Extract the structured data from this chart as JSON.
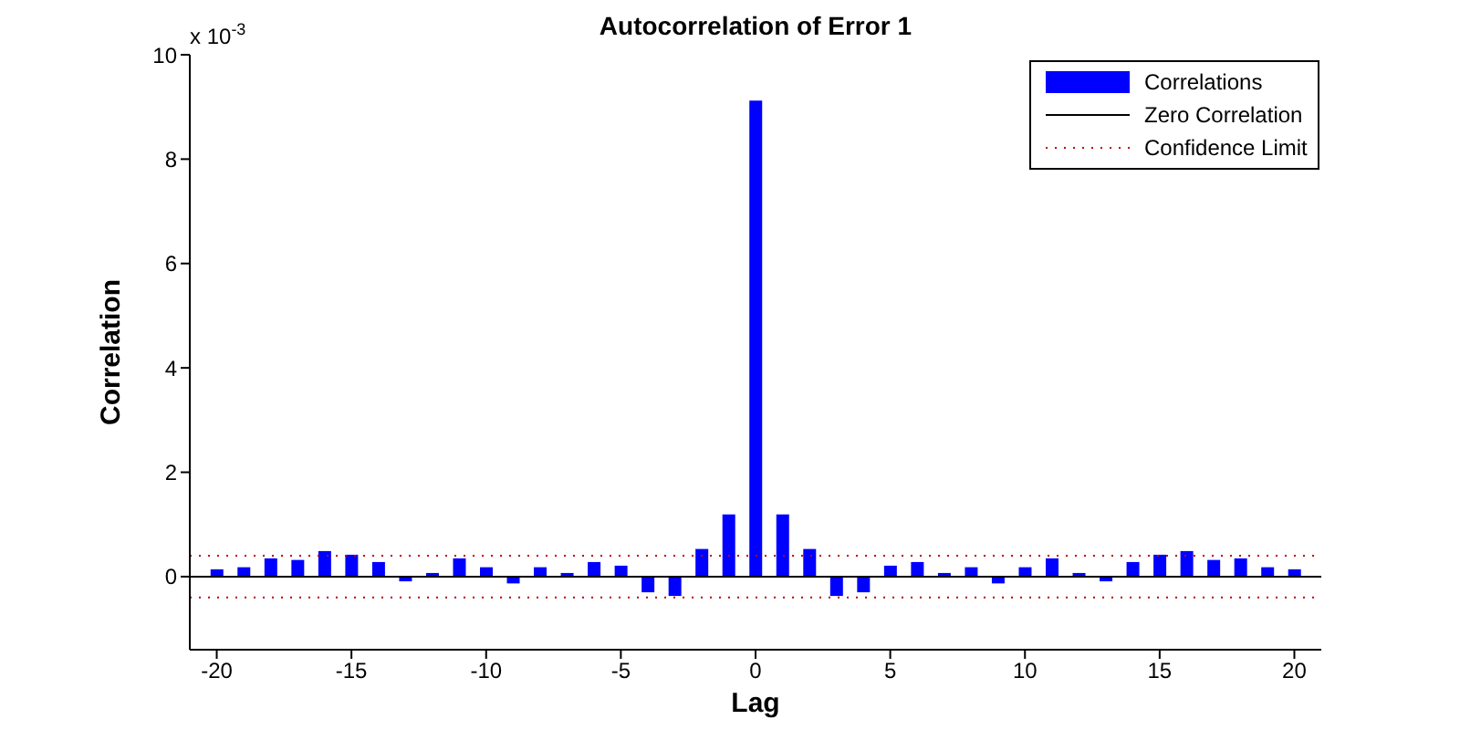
{
  "chart_data": {
    "type": "bar",
    "title": "Autocorrelation of Error 1",
    "xlabel": "Lag",
    "ylabel": "Correlation",
    "annotations": [
      "x 10$^{-3}$"
    ],
    "x": [
      -20,
      -19,
      -18,
      -17,
      -16,
      -15,
      -14,
      -13,
      -12,
      -11,
      -10,
      -9,
      -8,
      -7,
      -6,
      -5,
      -4,
      -3,
      -2,
      -1,
      0,
      1,
      2,
      3,
      4,
      5,
      6,
      7,
      8,
      9,
      10,
      11,
      12,
      13,
      14,
      15,
      16,
      17,
      18,
      19,
      20
    ],
    "series": [
      {
        "name": "Correlations",
        "color": "#0000ff",
        "values": [
          0.14,
          0.18,
          0.35,
          0.32,
          0.49,
          0.42,
          0.28,
          -0.09,
          0.07,
          0.35,
          0.18,
          -0.13,
          0.18,
          0.07,
          0.28,
          0.21,
          -0.3,
          -0.37,
          0.53,
          1.19,
          9.12,
          1.19,
          0.53,
          -0.37,
          -0.3,
          0.21,
          0.28,
          0.07,
          0.18,
          -0.13,
          0.18,
          0.35,
          0.07,
          -0.09,
          0.28,
          0.42,
          0.49,
          0.32,
          0.35,
          0.18,
          0.14
        ]
      }
    ],
    "ref_lines": [
      {
        "axis": "y",
        "value": 0,
        "label": "Zero Correlation",
        "color": "#000000",
        "line_style": "solid"
      },
      {
        "axis": "y",
        "value": 0.4,
        "label": "Confidence Limit",
        "color": "#c00000",
        "line_style": "dotted"
      },
      {
        "axis": "y",
        "value": -0.4,
        "color": "#c00000",
        "line_style": "dotted"
      }
    ],
    "xlim": [
      -21,
      21
    ],
    "xticks": [
      -20,
      -15,
      -10,
      -5,
      0,
      5,
      10,
      15,
      20
    ],
    "ylim": [
      -1.4,
      10
    ],
    "yticks": [
      0,
      2,
      4,
      6,
      8,
      10
    ],
    "legend": "top right"
  }
}
